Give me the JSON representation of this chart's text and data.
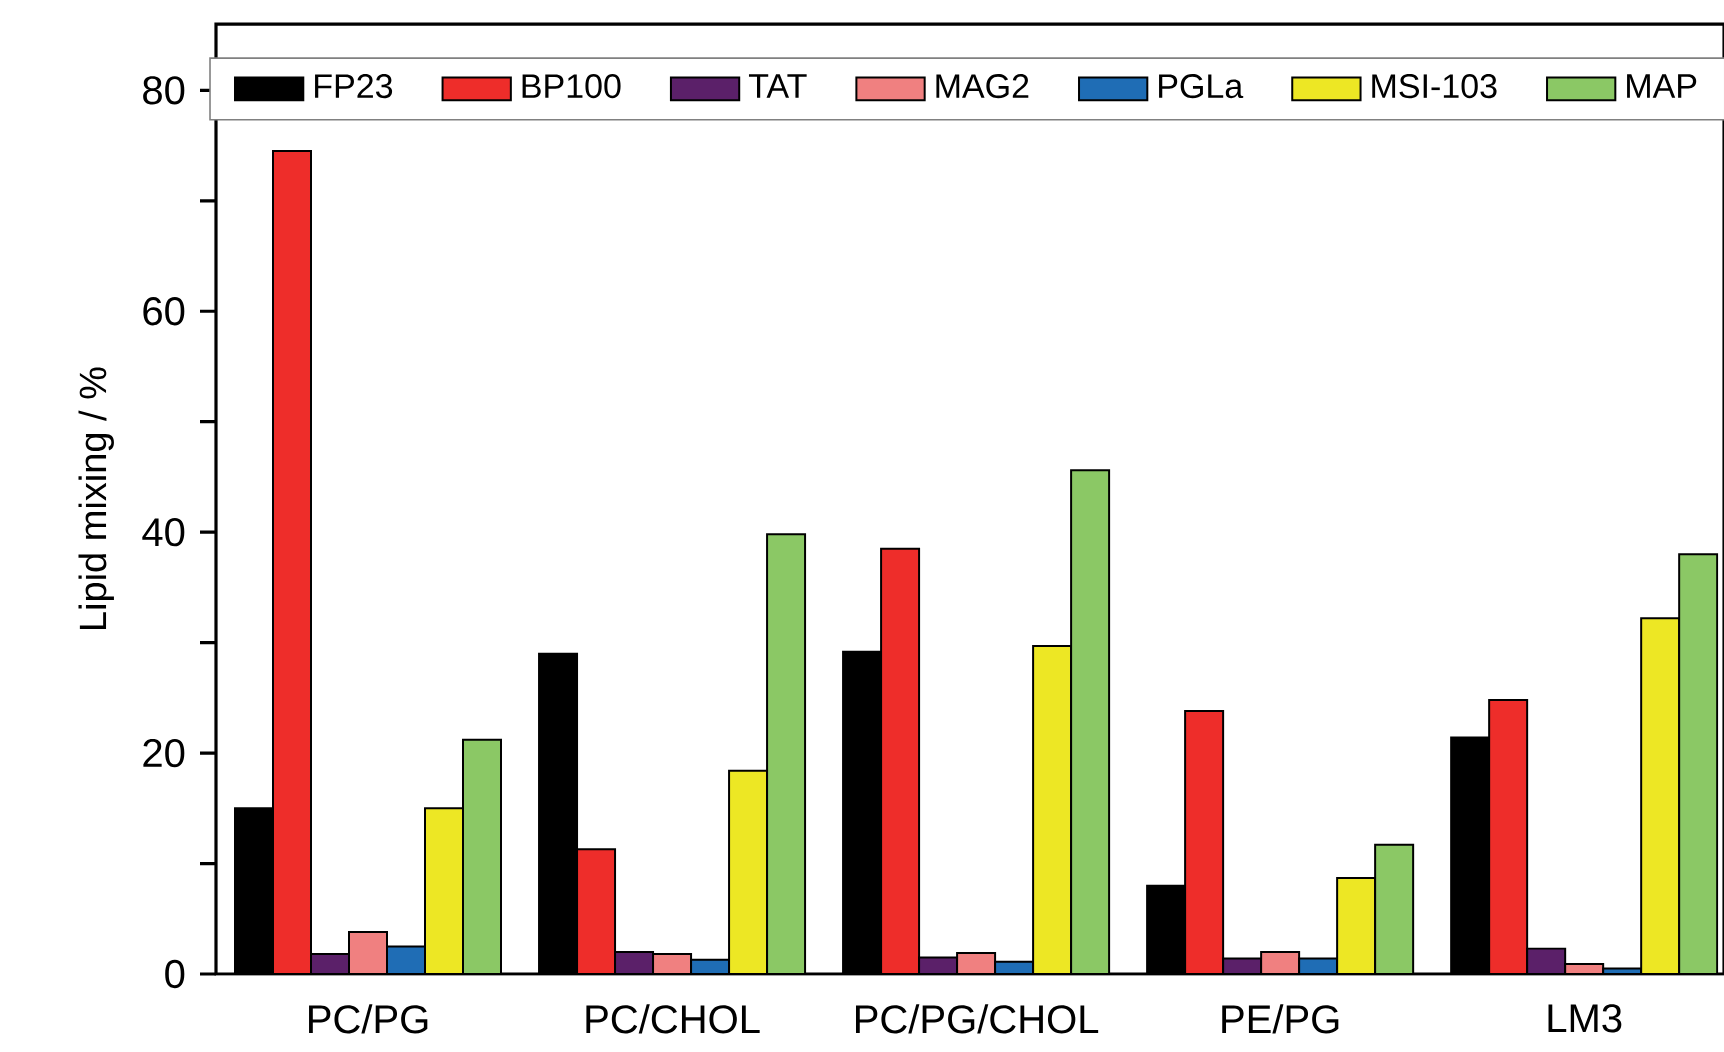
{
  "chart_data": {
    "type": "bar",
    "ylabel": "Lipid mixing / %",
    "categories": [
      "PC/PG",
      "PC/CHOL",
      "PC/PG/CHOL",
      "PE/PG",
      "LM3"
    ],
    "series": [
      {
        "name": "FP23",
        "color": "#000000",
        "values": [
          15,
          29,
          29.2,
          8,
          21.4
        ]
      },
      {
        "name": "BP100",
        "color": "#ee2d2a",
        "values": [
          74.5,
          11.3,
          38.5,
          23.8,
          24.8
        ]
      },
      {
        "name": "TAT",
        "color": "#5b2069",
        "values": [
          1.8,
          2.0,
          1.5,
          1.4,
          2.3
        ]
      },
      {
        "name": "MAG2",
        "color": "#f08080",
        "values": [
          3.8,
          1.8,
          1.9,
          2.0,
          0.9
        ]
      },
      {
        "name": "PGLa",
        "color": "#1f6db5",
        "values": [
          2.5,
          1.3,
          1.1,
          1.4,
          0.5
        ]
      },
      {
        "name": "MSI-103",
        "color": "#ede724",
        "values": [
          15,
          18.4,
          29.7,
          8.7,
          32.2
        ]
      },
      {
        "name": "MAP",
        "color": "#8bc865",
        "values": [
          21.2,
          39.8,
          45.6,
          11.7,
          38.0
        ]
      }
    ],
    "ylim": [
      0,
      86
    ],
    "yticks": [
      0,
      {
        "value": 10,
        "label": null
      },
      20,
      {
        "value": 30,
        "label": null
      },
      40,
      {
        "value": 50,
        "label": null
      },
      60,
      {
        "value": 70,
        "label": null
      },
      80
    ],
    "legend": "top",
    "grid": false
  }
}
